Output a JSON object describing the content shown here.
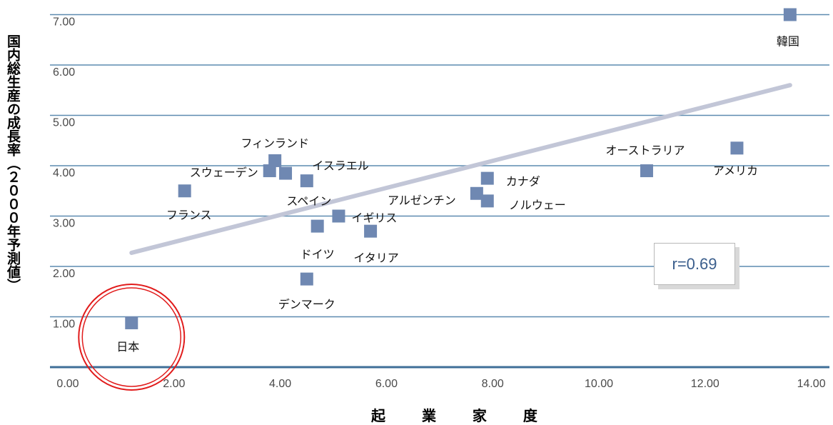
{
  "chart_data": {
    "type": "scatter",
    "xlabel": "起 業 家 度",
    "ylabel": "国内総生産の成長率（２０００年予測値）",
    "xlim": [
      0,
      14
    ],
    "ylim": [
      0,
      7.2
    ],
    "xticks": [
      "0.00",
      "2.00",
      "4.00",
      "6.00",
      "8.00",
      "10.00",
      "12.00",
      "14.00"
    ],
    "yticks": [
      "1.00",
      "2.00",
      "3.00",
      "4.00",
      "5.00",
      "6.00",
      "7.00"
    ],
    "points": [
      {
        "label": "日本",
        "x": 1.2,
        "y": 0.88
      },
      {
        "label": "フランス",
        "x": 2.2,
        "y": 3.5
      },
      {
        "label": "スウェーデン",
        "x": 3.8,
        "y": 3.9
      },
      {
        "label": "フィンランド",
        "x": 3.9,
        "y": 4.1
      },
      {
        "label": "イスラエル",
        "x": 4.1,
        "y": 3.85
      },
      {
        "label": "スペイン",
        "x": 4.5,
        "y": 3.7
      },
      {
        "label": "デンマーク",
        "x": 4.5,
        "y": 1.75
      },
      {
        "label": "ドイツ",
        "x": 4.7,
        "y": 2.8
      },
      {
        "label": "イギリス",
        "x": 5.1,
        "y": 3.0
      },
      {
        "label": "イタリア",
        "x": 5.7,
        "y": 2.7
      },
      {
        "label": "アルゼンチン",
        "x": 7.7,
        "y": 3.45
      },
      {
        "label": "カナダ",
        "x": 7.9,
        "y": 3.75
      },
      {
        "label": "ノルウェー",
        "x": 7.9,
        "y": 3.3
      },
      {
        "label": "オーストラリア",
        "x": 10.9,
        "y": 3.9
      },
      {
        "label": "アメリカ",
        "x": 12.6,
        "y": 4.35
      },
      {
        "label": "韓国",
        "x": 13.6,
        "y": 7.0
      }
    ],
    "trendline": {
      "x": [
        1.2,
        13.6
      ],
      "y": [
        2.27,
        5.6
      ]
    },
    "annotation": "r=0.69",
    "highlight": "日本",
    "grid": true,
    "colors": {
      "marker": "#6f88b2",
      "trend": "#c2c6d7",
      "grid": "#5d8bb0",
      "highlight": "#e11b1b"
    }
  }
}
